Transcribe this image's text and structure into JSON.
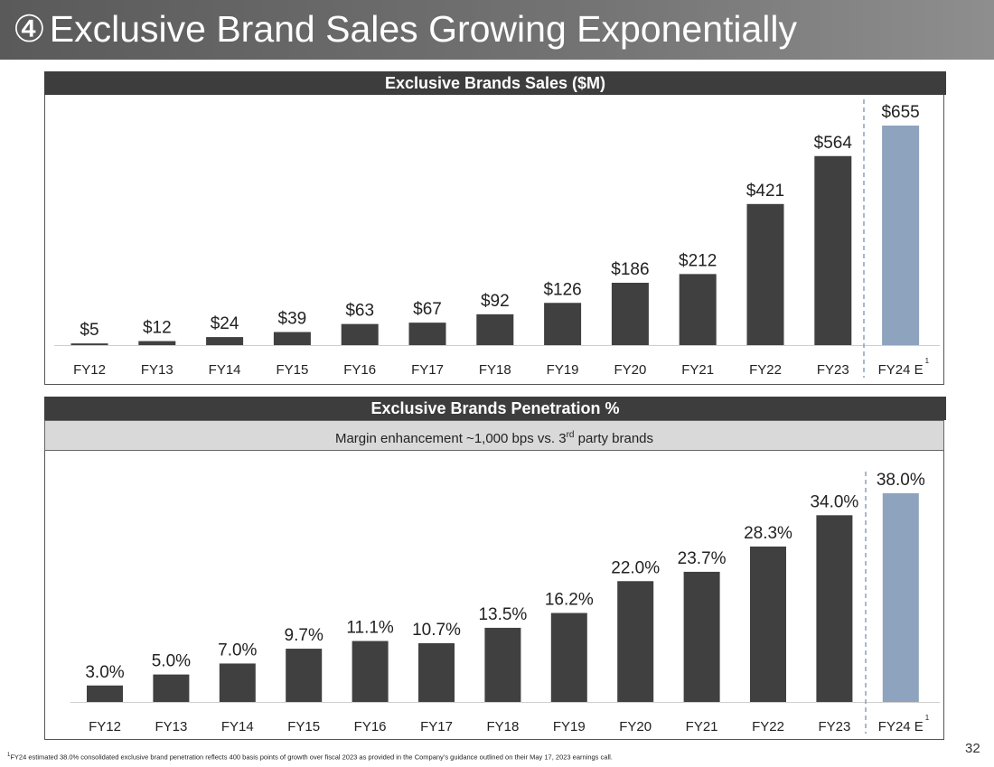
{
  "slide": {
    "number_glyph": "④",
    "title": "Exclusive Brand Sales Growing Exponentially",
    "page_number": "32"
  },
  "panel1": {
    "header": "Exclusive Brands Sales ($M)"
  },
  "panel2": {
    "header": "Exclusive Brands Penetration %",
    "subheader_prefix": "Margin enhancement ~1,000 bps vs. 3",
    "subheader_sup": "rd",
    "subheader_suffix": " party brands"
  },
  "footnote": {
    "marker": "1",
    "text": "FY24 estimated 38.0% consolidated exclusive brand penetration reflects 400 basis points of growth over fiscal 2023 as provided in the Company’s guidance outlined on their May 17, 2023 earnings call."
  },
  "colors": {
    "actual": "#404040",
    "estimate": "#8ea3be",
    "divider": "#8aa0bb"
  },
  "chart_data": [
    {
      "type": "bar",
      "title": "Exclusive Brands Sales ($M)",
      "categories": [
        "FY12",
        "FY13",
        "FY14",
        "FY15",
        "FY16",
        "FY17",
        "FY18",
        "FY19",
        "FY20",
        "FY21",
        "FY22",
        "FY23",
        "FY24 E"
      ],
      "footnote_marker_on": "FY24 E",
      "values": [
        5,
        12,
        24,
        39,
        63,
        67,
        92,
        126,
        186,
        212,
        421,
        564,
        655
      ],
      "data_labels": [
        "$5",
        "$12",
        "$24",
        "$39",
        "$63",
        "$67",
        "$92",
        "$126",
        "$186",
        "$212",
        "$421",
        "$564",
        "$655"
      ],
      "estimate_categories": [
        "FY24 E"
      ],
      "ylim": [
        0,
        655
      ],
      "xlabel": "",
      "ylabel": "",
      "grid": false
    },
    {
      "type": "bar",
      "title": "Exclusive Brands Penetration %",
      "categories": [
        "FY12",
        "FY13",
        "FY14",
        "FY15",
        "FY16",
        "FY17",
        "FY18",
        "FY19",
        "FY20",
        "FY21",
        "FY22",
        "FY23",
        "FY24 E"
      ],
      "footnote_marker_on": "FY24 E",
      "values": [
        3.0,
        5.0,
        7.0,
        9.7,
        11.1,
        10.7,
        13.5,
        16.2,
        22.0,
        23.7,
        28.3,
        34.0,
        38.0
      ],
      "data_labels": [
        "3.0%",
        "5.0%",
        "7.0%",
        "9.7%",
        "11.1%",
        "10.7%",
        "13.5%",
        "16.2%",
        "22.0%",
        "23.7%",
        "28.3%",
        "34.0%",
        "38.0%"
      ],
      "estimate_categories": [
        "FY24 E"
      ],
      "ylim": [
        0,
        38.0
      ],
      "xlabel": "",
      "ylabel": "",
      "grid": false
    }
  ]
}
